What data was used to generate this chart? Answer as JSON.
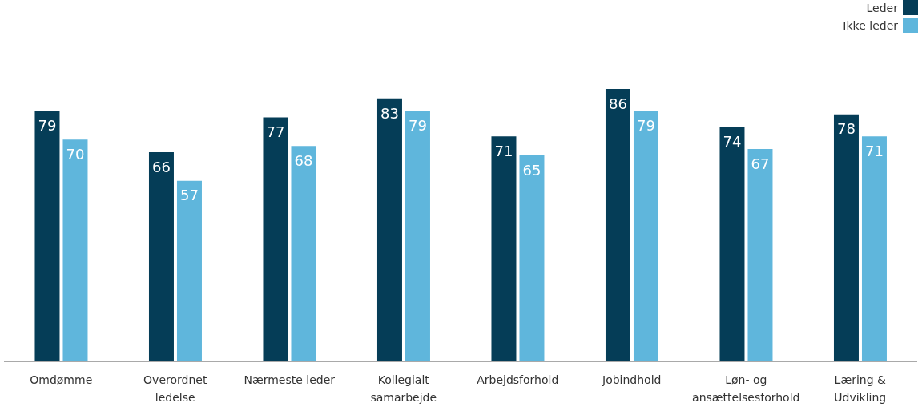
{
  "chart_data": {
    "type": "bar",
    "categories": [
      "Omdømme",
      "Overordnet ledelse",
      "Nærmeste leder",
      "Kollegialt samarbejde",
      "Arbejdsforhold",
      "Jobindhold",
      "Løn- og ansættelsesforhold",
      "Læring & Udvikling"
    ],
    "series": [
      {
        "name": "Leder",
        "color": "#053d57",
        "values": [
          79,
          66,
          77,
          83,
          71,
          86,
          74,
          78
        ]
      },
      {
        "name": "Ikke leder",
        "color": "#5fb6dc",
        "values": [
          70,
          57,
          68,
          79,
          65,
          79,
          67,
          71
        ]
      }
    ],
    "data_labels": true,
    "legend": "top right",
    "grid": false
  }
}
